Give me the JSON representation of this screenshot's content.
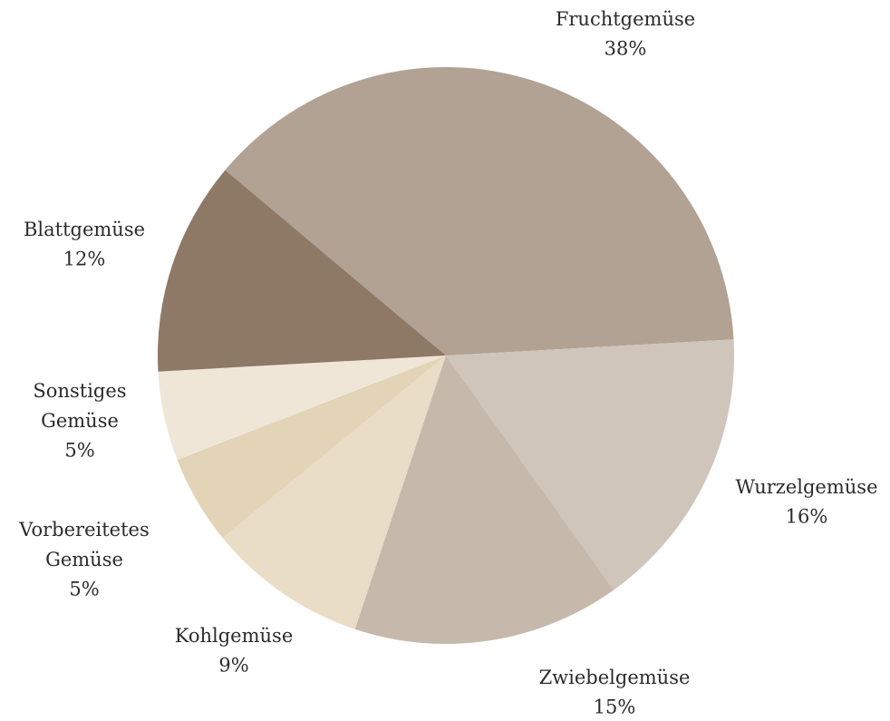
{
  "chart_data": {
    "type": "pie",
    "categories": [
      "Fruchtgemüse",
      "Wurzelgemüse",
      "Zwiebelgemüse",
      "Kohlgemüse",
      "Vorbereitetes Gemüse",
      "Sonstiges Gemüse",
      "Blattgemüse"
    ],
    "values": [
      38,
      16,
      15,
      9,
      5,
      5,
      12
    ],
    "value_labels": [
      "38%",
      "16%",
      "15%",
      "9%",
      "5%",
      "5%",
      "12%"
    ],
    "colors": [
      "#b1a293",
      "#cfc5bb",
      "#c6b9ab",
      "#e9ddc7",
      "#e3d3b7",
      "#f0e6d8",
      "#8e7967"
    ]
  }
}
